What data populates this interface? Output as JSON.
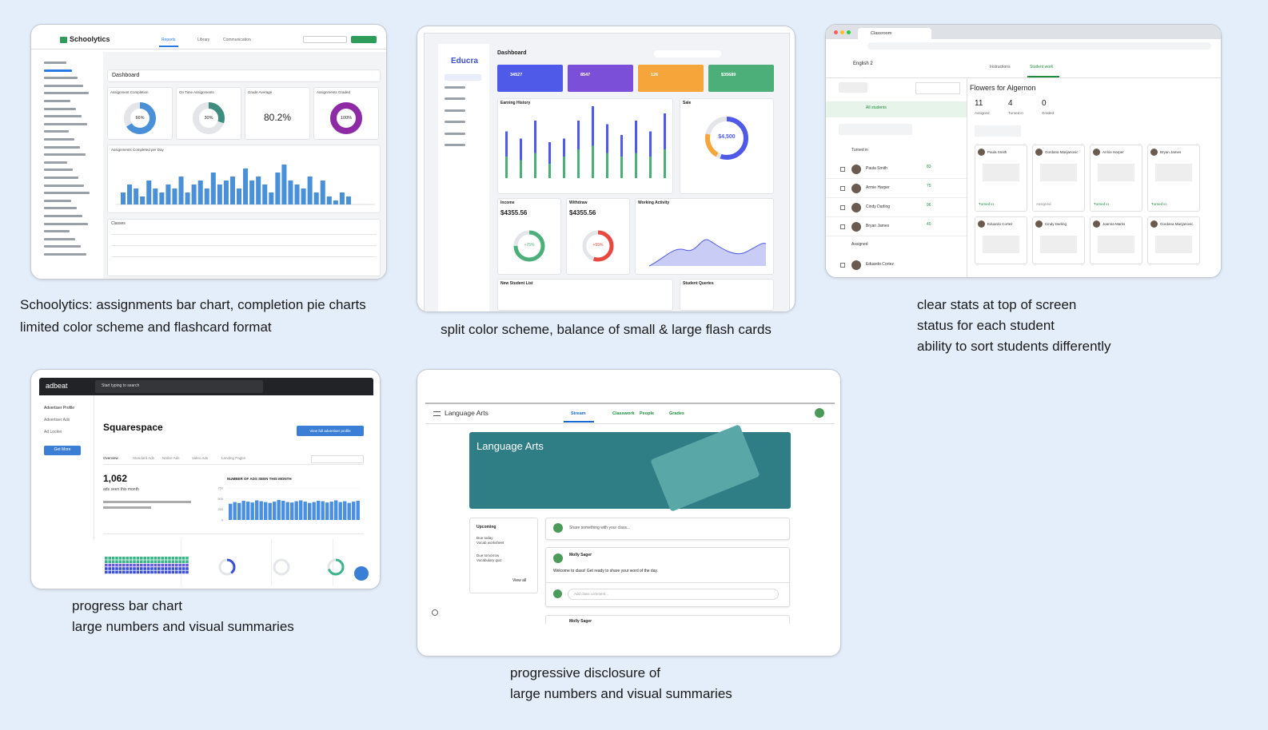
{
  "s1": {
    "brand": "Schoolytics",
    "nav": [
      "Reports",
      "Library",
      "Communication"
    ],
    "heading": "Dashboard",
    "stats": [
      {
        "title": "Assignment Completion",
        "value": "66%"
      },
      {
        "title": "On Time Assignments",
        "value": "30%"
      },
      {
        "title": "Grade Average",
        "value": "80.2%"
      },
      {
        "title": "Assignments Graded",
        "value": "100%"
      }
    ],
    "chart_title": "Assignments Completed per Day",
    "bars": [
      3,
      5,
      4,
      2,
      6,
      4,
      3,
      5,
      4,
      7,
      3,
      5,
      6,
      4,
      8,
      5,
      6,
      7,
      4,
      9,
      6,
      7,
      5,
      3,
      8,
      10,
      6,
      5,
      4,
      7,
      3,
      6,
      2,
      1,
      3,
      2
    ],
    "bars_max": 10,
    "table_title": "Classes"
  },
  "s2": {
    "brand": "Educra",
    "heading": "Dashboard",
    "tiles": [
      "34527",
      "8547",
      "126",
      "$35689"
    ],
    "panels": [
      "Earning History",
      "Sale",
      "Income",
      "Withdraw",
      "Working Activity",
      "New Student List",
      "Student Queries"
    ],
    "income": "$4355.56",
    "withdraw": "$4355.56",
    "income_pct": "+75%",
    "withdraw_pct": "+55%",
    "sale": "$4,500",
    "green": [
      30,
      25,
      35,
      20,
      30,
      40,
      45,
      35,
      30,
      35,
      30,
      40
    ],
    "blue": [
      35,
      30,
      45,
      30,
      25,
      40,
      55,
      40,
      30,
      45,
      35,
      50
    ],
    "bars_max": 100
  },
  "s3": {
    "tab": "Classroom",
    "class": "English 2",
    "tabs": [
      "Instructions",
      "Student work"
    ],
    "assignment": "Flowers for Algernon",
    "stats": [
      {
        "n": "11",
        "label": "Assigned"
      },
      {
        "n": "4",
        "label": "Turned in"
      },
      {
        "n": "0",
        "label": "Graded"
      }
    ],
    "all": "All students",
    "groups": [
      "Turned in",
      "Assigned"
    ],
    "students": [
      {
        "name": "Paula Smith",
        "grade": "83"
      },
      {
        "name": "Armie Harper",
        "grade": "75"
      },
      {
        "name": "Cindy Darling",
        "grade": "96"
      },
      {
        "name": "Bryan James",
        "grade": "40"
      }
    ],
    "assigned": [
      "Eduardo Cortez"
    ],
    "cards": [
      "Paula Smith",
      "Gordana Marijanovic",
      "Armie Harper",
      "Bryan James",
      "Eduardo Cortez",
      "Cindy Darling",
      "Joanna Marks",
      "Gordana Marijanovic"
    ],
    "status": [
      "Turned in",
      "Assigned",
      "Turned in",
      "Turned in"
    ]
  },
  "s4": {
    "brand": "adbeat",
    "search": "Start typing to search",
    "side": [
      "Advertiser Profile",
      "Advertiser Ads",
      "Ad Locker"
    ],
    "more": "Get More",
    "advertiser": "Squarespace",
    "button": "View full advertiser profile",
    "tabs": [
      "Overview",
      "Standard Ads",
      "Native Ads",
      "Video Ads",
      "Landing Pages"
    ],
    "big": "1,062",
    "big_label": "ads seen this month",
    "chart_title": "NUMBER OF ADS SEEN THIS MONTH",
    "bars": [
      380,
      420,
      400,
      450,
      430,
      410,
      460,
      440,
      420,
      400,
      430,
      470,
      450,
      420,
      410,
      440,
      460,
      430,
      400,
      420,
      450,
      440,
      410,
      430,
      460,
      420,
      440,
      400,
      430,
      450
    ],
    "ylim": [
      0,
      750
    ],
    "yticks": [
      0,
      250,
      500,
      750
    ]
  },
  "s5": {
    "title": "Language Arts",
    "tabs": [
      "Stream",
      "Classwork",
      "People",
      "Grades"
    ],
    "upcoming": "Upcoming",
    "due": [
      "Due today",
      "Vocab worksheet",
      "Due tomorrow",
      "Vocabulary quiz"
    ],
    "view_all": "View all",
    "share": "Share something with your class...",
    "author": "Molly Sager",
    "post": "Welcome to class! Get ready to share your word of the day.",
    "comment": "Add class comment..."
  },
  "captions": [
    [
      "Schoolytics: assignments bar chart, completion pie charts",
      "limited color scheme and flashcard format"
    ],
    [
      "split color scheme, balance of small & large flash cards"
    ],
    [
      "clear stats at top of screen",
      "status for each student",
      "ability to sort students differently"
    ],
    [
      "progress bar chart",
      "large numbers and visual summaries"
    ],
    [
      "progressive disclosure of",
      "large numbers and visual summaries"
    ]
  ]
}
